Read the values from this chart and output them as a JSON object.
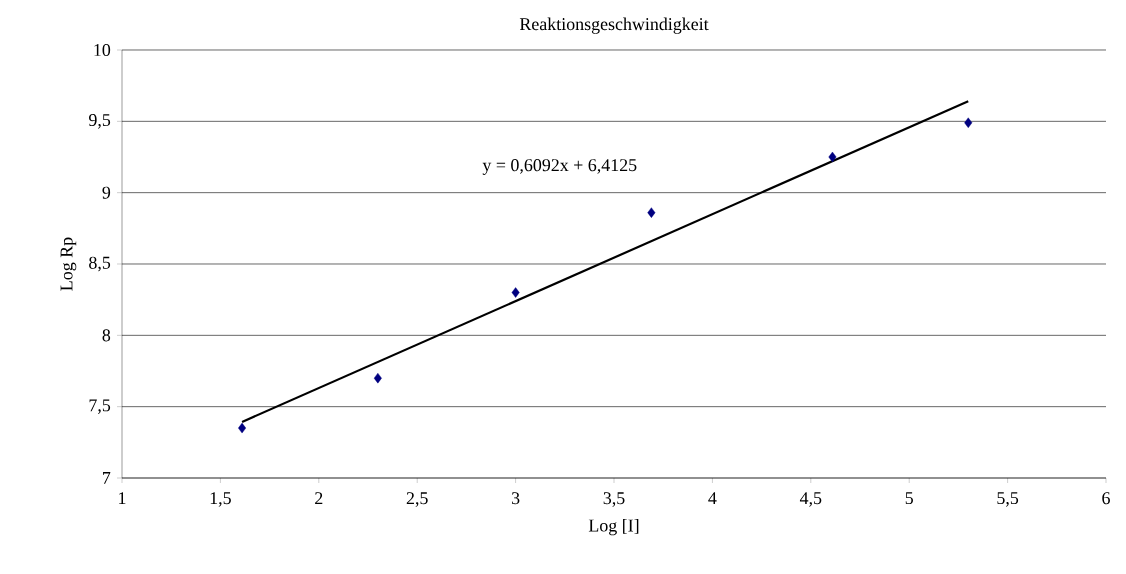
{
  "chart_data": {
    "type": "scatter",
    "title": "Reaktionsgeschwindigkeit",
    "xlabel": "Log  [I]",
    "ylabel": "Log Rp",
    "x": [
      1.61,
      2.3,
      3.0,
      3.69,
      4.61,
      5.3
    ],
    "series": [
      {
        "color": "#000080",
        "marker": "diamond",
        "values": [
          7.35,
          7.7,
          8.3,
          8.86,
          9.25,
          9.49
        ]
      },
      {
        "type": "line",
        "color": "#000000",
        "marker": "none",
        "x": [
          1.61,
          5.3
        ],
        "values": [
          7.393,
          9.641
        ]
      }
    ],
    "annotations": [
      "y = 0,6092x + 6,4125"
    ],
    "xlim": [
      1,
      6
    ],
    "ylim": [
      7,
      10
    ],
    "xticks": [
      1,
      {
        "value": 1.5,
        "label": "1,5"
      },
      2,
      {
        "value": 2.5,
        "label": "2,5"
      },
      3,
      {
        "value": 3.5,
        "label": "3,5"
      },
      4,
      {
        "value": 4.5,
        "label": "4,5"
      },
      5,
      {
        "value": 5.5,
        "label": "5,5"
      },
      6
    ],
    "yticks": [
      7,
      {
        "value": 7.5,
        "label": "7,5"
      },
      8,
      {
        "value": 8.5,
        "label": "8,5"
      },
      9,
      {
        "value": 9.5,
        "label": "9,5"
      },
      10
    ],
    "grid": "y"
  }
}
